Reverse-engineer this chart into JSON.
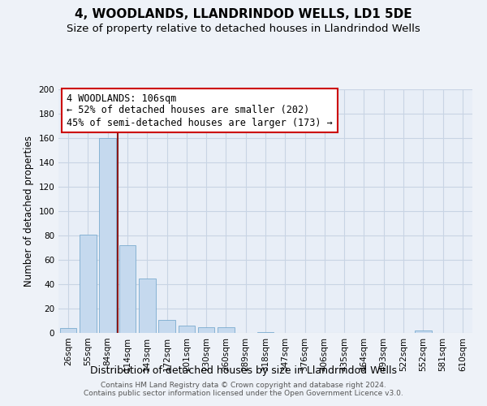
{
  "title": "4, WOODLANDS, LLANDRINDOD WELLS, LD1 5DE",
  "subtitle": "Size of property relative to detached houses in Llandrindod Wells",
  "xlabel": "Distribution of detached houses by size in Llandrindod Wells",
  "ylabel": "Number of detached properties",
  "bar_labels": [
    "26sqm",
    "55sqm",
    "84sqm",
    "114sqm",
    "143sqm",
    "172sqm",
    "201sqm",
    "230sqm",
    "260sqm",
    "289sqm",
    "318sqm",
    "347sqm",
    "376sqm",
    "406sqm",
    "435sqm",
    "464sqm",
    "493sqm",
    "522sqm",
    "552sqm",
    "581sqm",
    "610sqm"
  ],
  "bar_values": [
    4,
    81,
    160,
    72,
    45,
    11,
    6,
    5,
    5,
    0,
    1,
    0,
    0,
    0,
    0,
    0,
    0,
    0,
    2,
    0,
    0
  ],
  "bar_color": "#c5d9ee",
  "bar_edge_color": "#7aabcf",
  "vline_color": "#8b1a1a",
  "vline_x": 2.5,
  "annotation_text_line1": "4 WOODLANDS: 106sqm",
  "annotation_text_line2": "← 52% of detached houses are smaller (202)",
  "annotation_text_line3": "45% of semi-detached houses are larger (173) →",
  "annotation_box_color": "#cc0000",
  "ylim": [
    0,
    200
  ],
  "yticks": [
    0,
    20,
    40,
    60,
    80,
    100,
    120,
    140,
    160,
    180,
    200
  ],
  "footer_line1": "Contains HM Land Registry data © Crown copyright and database right 2024.",
  "footer_line2": "Contains public sector information licensed under the Open Government Licence v3.0.",
  "bg_color": "#eef2f8",
  "plot_bg_color": "#e8eef7",
  "grid_color": "#c8d4e4",
  "title_fontsize": 11,
  "subtitle_fontsize": 9.5,
  "xlabel_fontsize": 9,
  "ylabel_fontsize": 8.5,
  "tick_fontsize": 7.5,
  "annotation_fontsize": 8.5,
  "footer_fontsize": 6.5
}
